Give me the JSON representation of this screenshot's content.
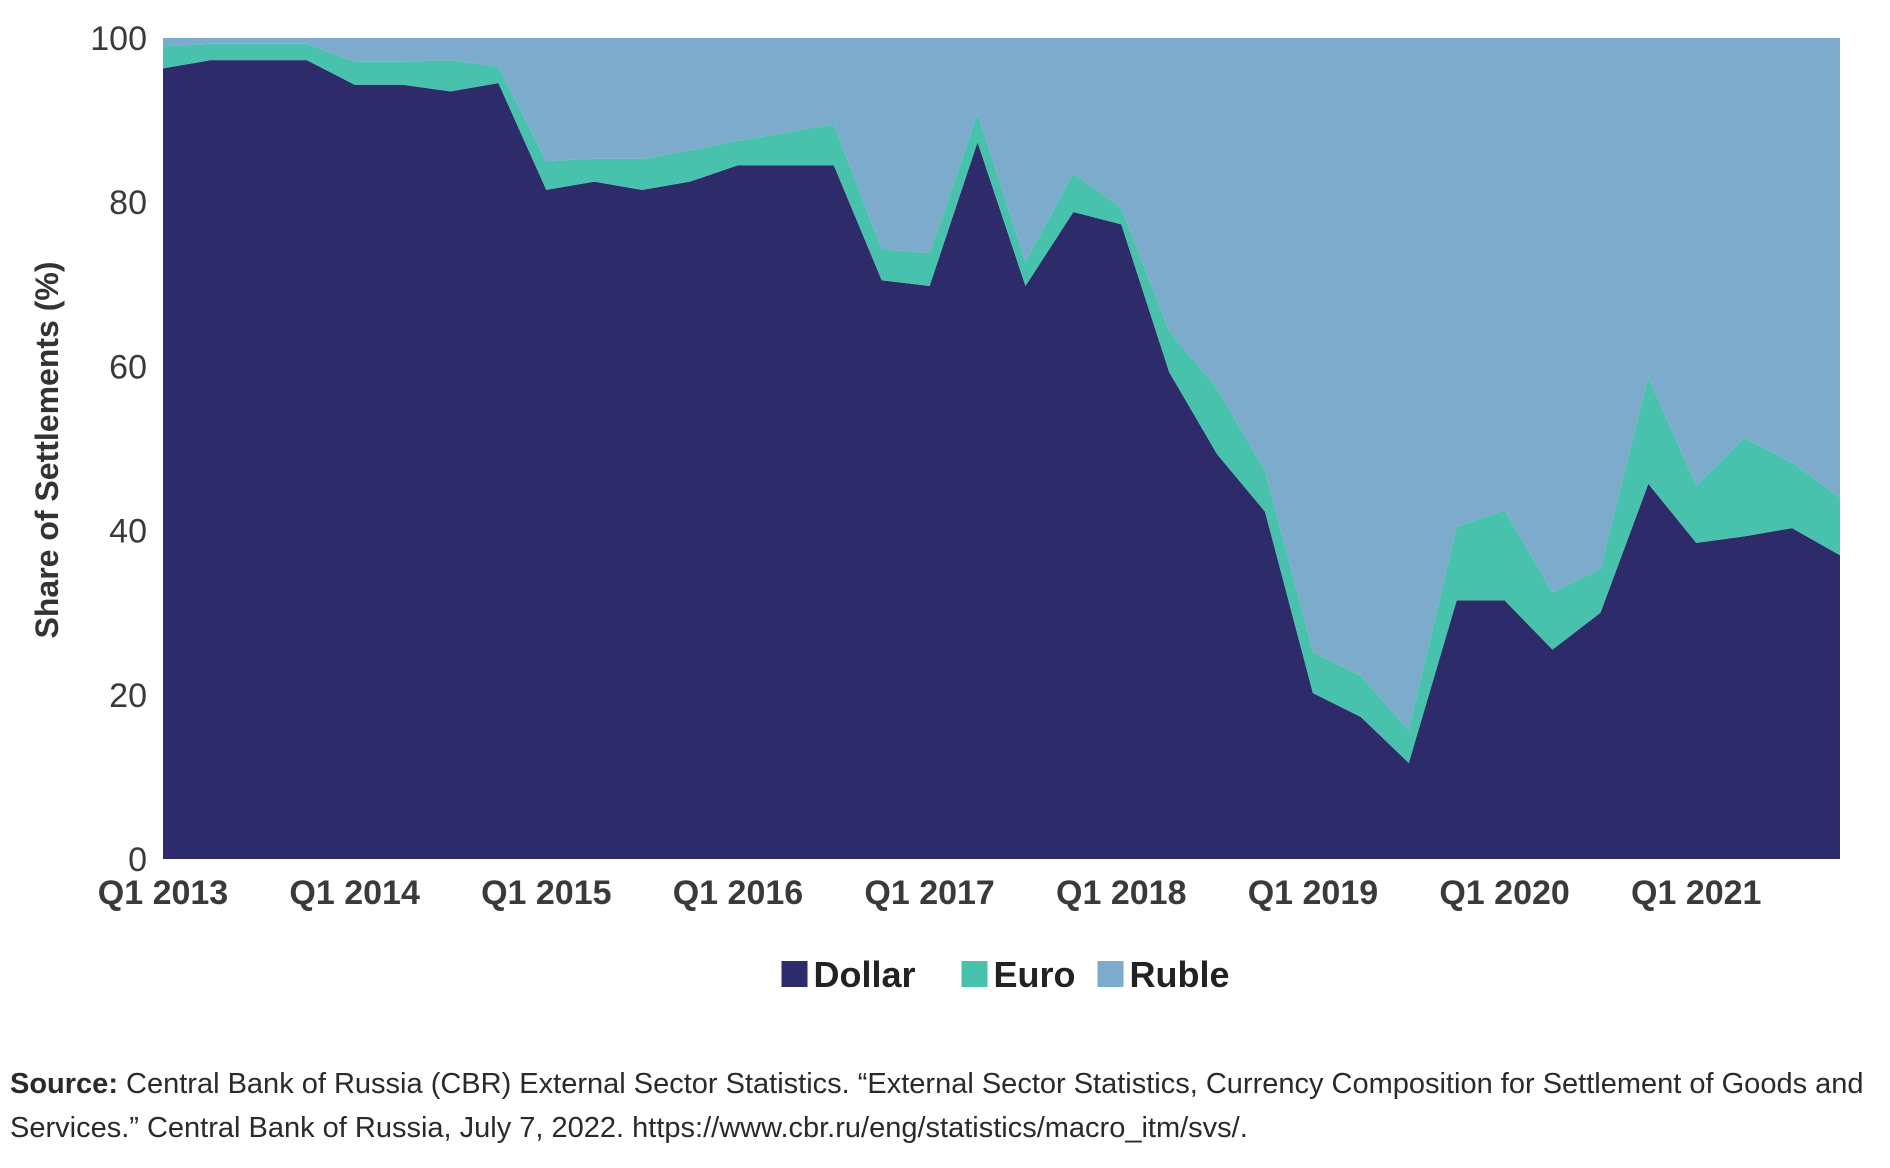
{
  "chart_data": {
    "type": "area",
    "stacked": true,
    "ylabel": "Share of Settlements (%)",
    "xlabel": "",
    "ylim": [
      0,
      100
    ],
    "yticks": [
      0,
      20,
      40,
      60,
      80,
      100
    ],
    "xtick_labels": [
      "Q1 2013",
      "Q1 2014",
      "Q1 2015",
      "Q1 2016",
      "Q1 2017",
      "Q1 2018",
      "Q1 2019",
      "Q1 2020",
      "Q1 2021"
    ],
    "xtick_index": [
      0,
      4,
      8,
      12,
      16,
      20,
      24,
      28,
      32
    ],
    "legend_position": "bottom-center",
    "categories": [
      "Q1 2013",
      "Q2 2013",
      "Q3 2013",
      "Q4 2013",
      "Q1 2014",
      "Q2 2014",
      "Q3 2014",
      "Q4 2014",
      "Q1 2015",
      "Q2 2015",
      "Q3 2015",
      "Q4 2015",
      "Q1 2016",
      "Q2 2016",
      "Q3 2016",
      "Q4 2016",
      "Q1 2017",
      "Q2 2017",
      "Q3 2017",
      "Q4 2017",
      "Q1 2018",
      "Q2 2018",
      "Q3 2018",
      "Q4 2018",
      "Q1 2019",
      "Q2 2019",
      "Q3 2019",
      "Q4 2019",
      "Q1 2020",
      "Q2 2020",
      "Q3 2020",
      "Q4 2020",
      "Q1 2021",
      "Q2 2021",
      "Q3 2021",
      "Q4 2021"
    ],
    "series": [
      {
        "name": "Dollar",
        "color": "#2e2b6a",
        "values": [
          96.3,
          97.3,
          97.3,
          97.3,
          94.3,
          94.3,
          93.5,
          94.5,
          81.5,
          82.5,
          81.5,
          82.5,
          84.5,
          84.5,
          84.5,
          70.5,
          69.8,
          87.3,
          69.8,
          78.8,
          77.3,
          59.3,
          49.3,
          42.3,
          20.2,
          17.3,
          11.7,
          31.5,
          31.5,
          25.5,
          30.0,
          45.7,
          38.5,
          39.3,
          40.3,
          37.0
        ]
      },
      {
        "name": "Euro",
        "color": "#49c2ad",
        "values": [
          2.7,
          2.0,
          2.0,
          2.0,
          2.8,
          2.8,
          3.8,
          2.0,
          3.5,
          2.8,
          3.8,
          3.8,
          3.0,
          4.0,
          5.0,
          3.8,
          4.0,
          3.5,
          3.0,
          4.7,
          2.0,
          5.0,
          8.0,
          5.0,
          5.0,
          5.0,
          4.0,
          9.0,
          11.0,
          7.0,
          5.3,
          13.0,
          7.0,
          12.0,
          8.0,
          7.0
        ]
      },
      {
        "name": "Ruble",
        "color": "#7cabcb",
        "values": [
          1.0,
          0.7,
          0.7,
          0.7,
          2.9,
          2.9,
          2.7,
          3.5,
          15.0,
          14.7,
          14.7,
          13.7,
          12.5,
          11.5,
          10.5,
          25.7,
          26.2,
          9.2,
          27.2,
          16.5,
          20.7,
          35.7,
          42.7,
          52.7,
          74.8,
          77.7,
          84.3,
          59.5,
          57.5,
          67.5,
          64.7,
          41.3,
          54.5,
          48.7,
          51.7,
          56.0
        ]
      }
    ]
  },
  "source": {
    "label": "Source:",
    "text": "Central Bank of Russia (CBR) External Sector Statistics. “External Sector Statistics, Currency Composition for Settlement of Goods and Services.” Central Bank of Russia, July 7, 2022. https://www.cbr.ru/eng/statistics/macro_itm/svs/."
  }
}
